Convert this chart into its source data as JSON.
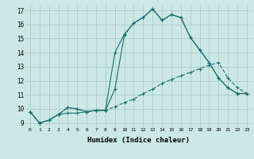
{
  "xlabel": "Humidex (Indice chaleur)",
  "background_color": "#cce8e4",
  "grid_color": "#aacccc",
  "line_color": "#1a6e6e",
  "xlim": [
    -0.5,
    23.5
  ],
  "ylim": [
    8.7,
    17.4
  ],
  "xticks": [
    0,
    1,
    2,
    3,
    4,
    5,
    6,
    7,
    8,
    9,
    10,
    11,
    12,
    13,
    14,
    15,
    16,
    17,
    18,
    19,
    20,
    21,
    22,
    23
  ],
  "yticks": [
    9,
    10,
    11,
    12,
    13,
    14,
    15,
    16,
    17
  ],
  "line1_x": [
    0,
    1,
    2,
    3,
    4,
    5,
    6,
    7,
    8,
    9,
    10,
    11,
    12,
    13,
    14,
    15,
    16,
    17,
    18,
    19,
    20,
    21,
    22,
    23
  ],
  "line1_y": [
    9.8,
    9.0,
    9.2,
    9.6,
    9.7,
    9.7,
    9.8,
    9.9,
    9.9,
    14.0,
    15.3,
    16.1,
    16.5,
    17.1,
    16.3,
    16.7,
    16.5,
    15.1,
    14.2,
    13.3,
    12.2,
    11.5,
    11.1,
    11.1
  ],
  "line2_x": [
    0,
    1,
    2,
    3,
    4,
    5,
    6,
    7,
    8,
    9,
    10,
    11,
    12,
    13,
    14,
    15,
    16,
    17,
    18,
    19,
    20,
    21,
    22,
    23
  ],
  "line2_y": [
    9.8,
    9.0,
    9.2,
    9.6,
    10.1,
    10.0,
    9.8,
    9.9,
    9.9,
    11.4,
    15.25,
    16.1,
    16.5,
    17.1,
    16.3,
    16.7,
    16.5,
    15.1,
    14.2,
    13.3,
    12.2,
    11.5,
    11.1,
    11.1
  ],
  "line3_x": [
    0,
    1,
    2,
    3,
    4,
    5,
    6,
    7,
    8,
    9,
    10,
    11,
    12,
    13,
    14,
    15,
    16,
    17,
    18,
    19,
    20,
    21,
    22,
    23
  ],
  "line3_y": [
    9.8,
    9.0,
    9.2,
    9.6,
    10.1,
    10.0,
    9.8,
    9.9,
    9.9,
    10.15,
    10.45,
    10.7,
    11.1,
    11.4,
    11.8,
    12.1,
    12.35,
    12.6,
    12.85,
    13.1,
    13.3,
    12.2,
    11.5,
    11.1
  ]
}
